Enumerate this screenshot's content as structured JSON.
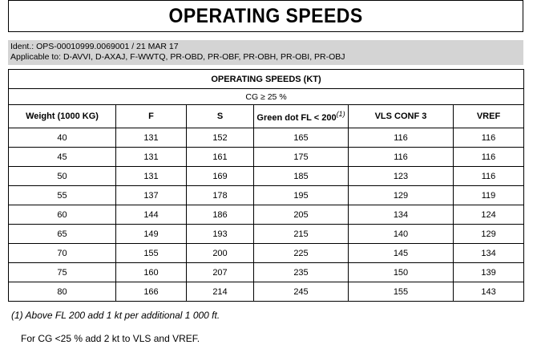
{
  "title": "OPERATING SPEEDS",
  "ident": {
    "line1": "Ident.: OPS-00010999.0069001 / 21 MAR 17",
    "line2": "Applicable to: D-AVVI, D-AXAJ, F-WWTQ, PR-OBD, PR-OBF, PR-OBH, PR-OBI, PR-OBJ"
  },
  "table": {
    "title": "OPERATING SPEEDS (KT)",
    "condition": "CG ≥ 25 %",
    "columns": [
      "Weight (1000 KG)",
      "F",
      "S",
      "Green dot FL < 200",
      "VLS CONF 3",
      "VREF"
    ],
    "footnote_mark": "(1)",
    "rows": [
      [
        "40",
        "131",
        "152",
        "165",
        "116",
        "116"
      ],
      [
        "45",
        "131",
        "161",
        "175",
        "116",
        "116"
      ],
      [
        "50",
        "131",
        "169",
        "185",
        "123",
        "116"
      ],
      [
        "55",
        "137",
        "178",
        "195",
        "129",
        "119"
      ],
      [
        "60",
        "144",
        "186",
        "205",
        "134",
        "124"
      ],
      [
        "65",
        "149",
        "193",
        "215",
        "140",
        "129"
      ],
      [
        "70",
        "155",
        "200",
        "225",
        "145",
        "134"
      ],
      [
        "75",
        "160",
        "207",
        "235",
        "150",
        "139"
      ],
      [
        "80",
        "166",
        "214",
        "245",
        "155",
        "143"
      ]
    ]
  },
  "notes": {
    "footnote": "(1)  Above FL 200 add 1 kt per additional 1 000 ft.",
    "cg_note": "For CG <25 % add 2 kt to VLS and VREF."
  }
}
